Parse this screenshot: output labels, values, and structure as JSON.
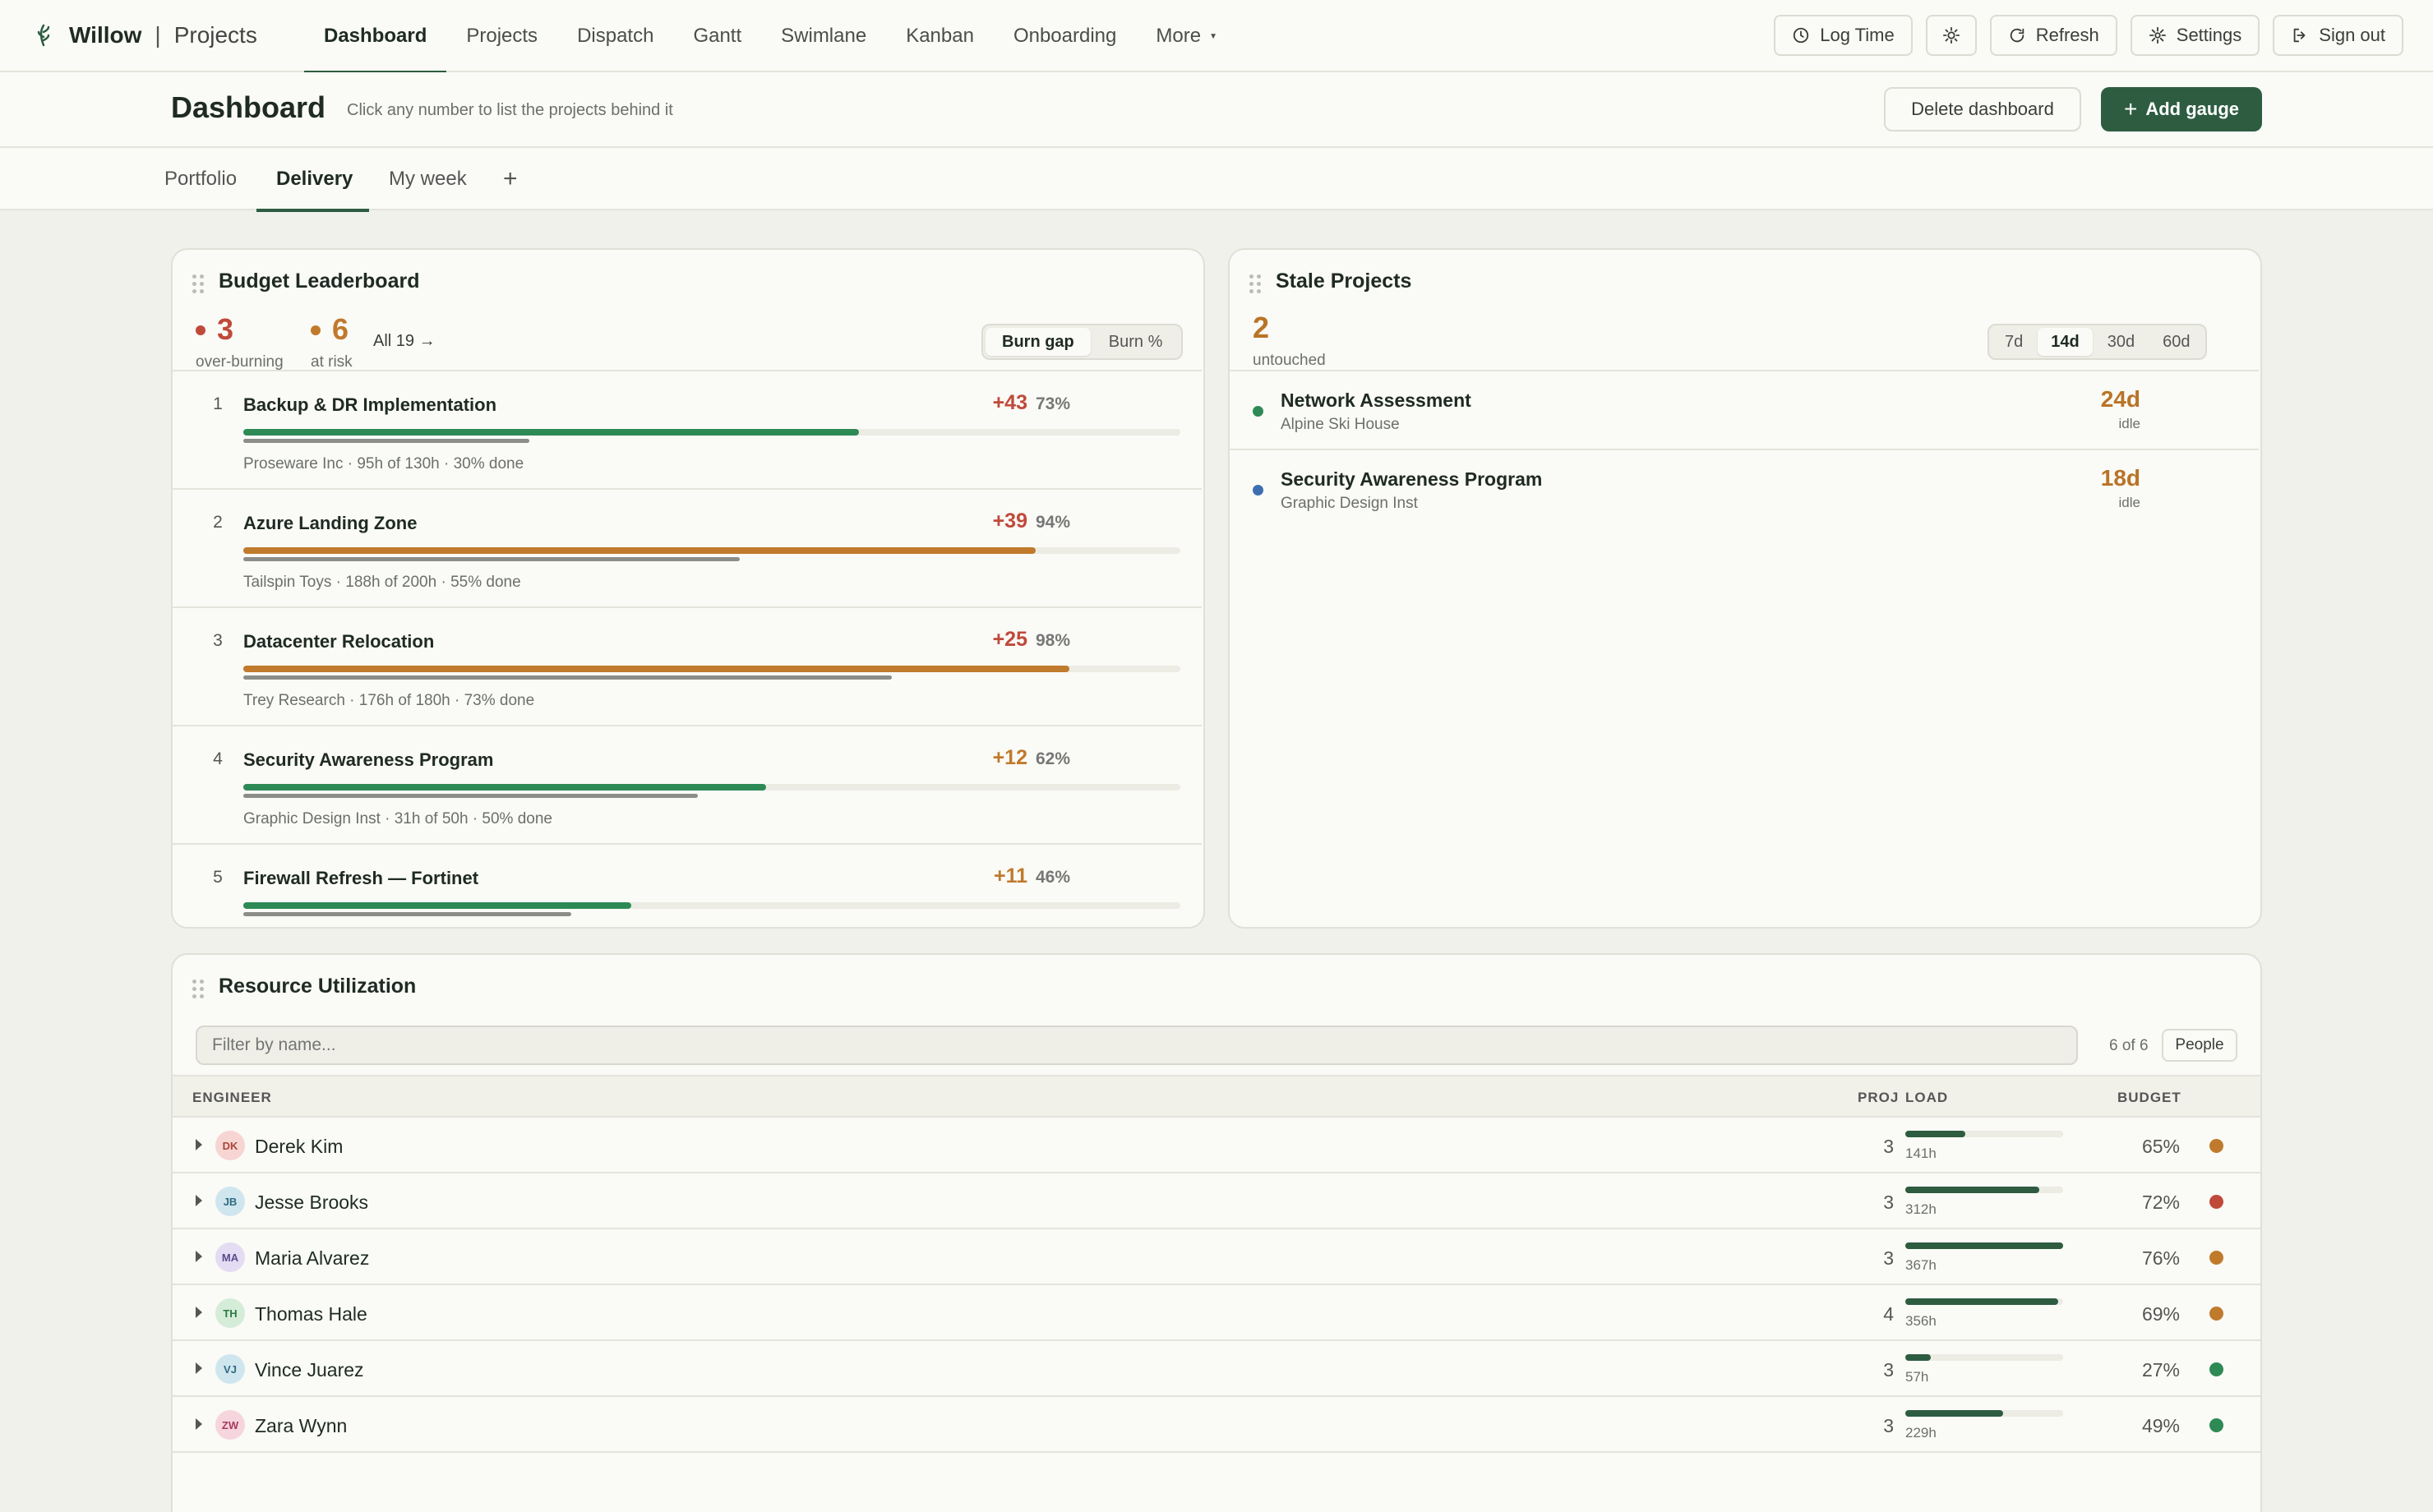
{
  "brand": {
    "name": "Willow",
    "separator": "|",
    "app": "Projects"
  },
  "nav": {
    "tabs": [
      {
        "label": "Dashboard",
        "active": true
      },
      {
        "label": "Projects"
      },
      {
        "label": "Dispatch"
      },
      {
        "label": "Gantt"
      },
      {
        "label": "Swimlane"
      },
      {
        "label": "Kanban"
      },
      {
        "label": "Onboarding"
      },
      {
        "label": "More"
      }
    ],
    "buttons": {
      "log_time": "Log Time",
      "refresh": "Refresh",
      "settings": "Settings",
      "sign_out": "Sign out"
    }
  },
  "header": {
    "title": "Dashboard",
    "subtitle": "Click any number to list the projects behind it",
    "delete_label": "Delete dashboard",
    "add_label": "Add gauge"
  },
  "subtabs": [
    {
      "label": "Portfolio"
    },
    {
      "label": "Delivery",
      "active": true
    },
    {
      "label": "My week"
    },
    {
      "label": "+"
    }
  ],
  "leaderboard": {
    "title": "Budget Leaderboard",
    "over_burning": {
      "value": "3",
      "label": "over-burning"
    },
    "at_risk": {
      "value": "6",
      "label": "at risk"
    },
    "all_link": "All 19 →",
    "toggle": [
      "Burn gap",
      "Burn %"
    ],
    "rows": [
      {
        "rank": "1",
        "name": "Backup & DR Implementation",
        "gap": "+43",
        "pct": "73%",
        "meta": "Proseware Inc · 95h of 130h · 30% done",
        "burn": 0.73,
        "done": 0.3,
        "color": "#2e8a55",
        "gap_color": "#bf4a3a"
      },
      {
        "rank": "2",
        "name": "Azure Landing Zone",
        "gap": "+39",
        "pct": "94%",
        "meta": "Tailspin Toys · 188h of 200h · 55% done",
        "burn": 0.94,
        "done": 0.55,
        "color": "#c07a2c",
        "gap_color": "#bf4a3a"
      },
      {
        "rank": "3",
        "name": "Datacenter Relocation",
        "gap": "+25",
        "pct": "98%",
        "meta": "Trey Research · 176h of 180h · 73% done",
        "burn": 0.98,
        "done": 0.73,
        "color": "#c07a2c",
        "gap_color": "#bf4a3a"
      },
      {
        "rank": "4",
        "name": "Security Awareness Program",
        "gap": "+12",
        "pct": "62%",
        "meta": "Graphic Design Inst · 31h of 50h · 50% done",
        "burn": 0.62,
        "done": 0.5,
        "color": "#2e8a55",
        "gap_color": "#c07a2c"
      },
      {
        "rank": "5",
        "name": "Firewall Refresh — Fortinet",
        "gap": "+11",
        "pct": "46%",
        "meta": "",
        "burn": 0.46,
        "done": 0.35,
        "color": "#2e8a55",
        "gap_color": "#c07a2c"
      }
    ]
  },
  "stale": {
    "title": "Stale Projects",
    "count": "2",
    "count_label": "untouched",
    "ranges": [
      "7d",
      "14d",
      "30d",
      "60d"
    ],
    "active_range": "14d",
    "rows": [
      {
        "name": "Network Assessment",
        "client": "Alpine Ski House",
        "days": "24d",
        "idle": "idle",
        "dot": "#2e8a55"
      },
      {
        "name": "Security Awareness Program",
        "client": "Graphic Design Inst",
        "days": "18d",
        "idle": "idle",
        "dot": "#3d6fb0"
      }
    ]
  },
  "resources": {
    "title": "Resource Utilization",
    "filter_placeholder": "Filter by name...",
    "count": "6 of 6",
    "people_label": "People",
    "headers": {
      "engineer": "ENGINEER",
      "proj": "PROJ",
      "load": "LOAD",
      "budget": "BUDGET"
    },
    "rows": [
      {
        "initials": "DK",
        "name": "Derek Kim",
        "proj": "3",
        "load": "141h",
        "load_frac": 0.38,
        "budget": "65%",
        "status": "#c07a2c",
        "av_bg": "#f6d5d2",
        "av_fg": "#a8463b"
      },
      {
        "initials": "JB",
        "name": "Jesse Brooks",
        "proj": "3",
        "load": "312h",
        "load_frac": 0.85,
        "budget": "72%",
        "status": "#bf4a3a",
        "av_bg": "#cfe6ee",
        "av_fg": "#2f6b80"
      },
      {
        "initials": "MA",
        "name": "Maria Alvarez",
        "proj": "3",
        "load": "367h",
        "load_frac": 1.0,
        "budget": "76%",
        "status": "#c07a2c",
        "av_bg": "#e3dcf2",
        "av_fg": "#5b4a8e"
      },
      {
        "initials": "TH",
        "name": "Thomas Hale",
        "proj": "4",
        "load": "356h",
        "load_frac": 0.97,
        "budget": "69%",
        "status": "#c07a2c",
        "av_bg": "#d5ecd9",
        "av_fg": "#2f7a45"
      },
      {
        "initials": "VJ",
        "name": "Vince Juarez",
        "proj": "3",
        "load": "57h",
        "load_frac": 0.16,
        "budget": "27%",
        "status": "#2e8a55",
        "av_bg": "#cfe6ee",
        "av_fg": "#2f6b80"
      },
      {
        "initials": "ZW",
        "name": "Zara Wynn",
        "proj": "3",
        "load": "229h",
        "load_frac": 0.62,
        "budget": "49%",
        "status": "#2e8a55",
        "av_bg": "#f6d5de",
        "av_fg": "#a83b5c"
      }
    ]
  }
}
